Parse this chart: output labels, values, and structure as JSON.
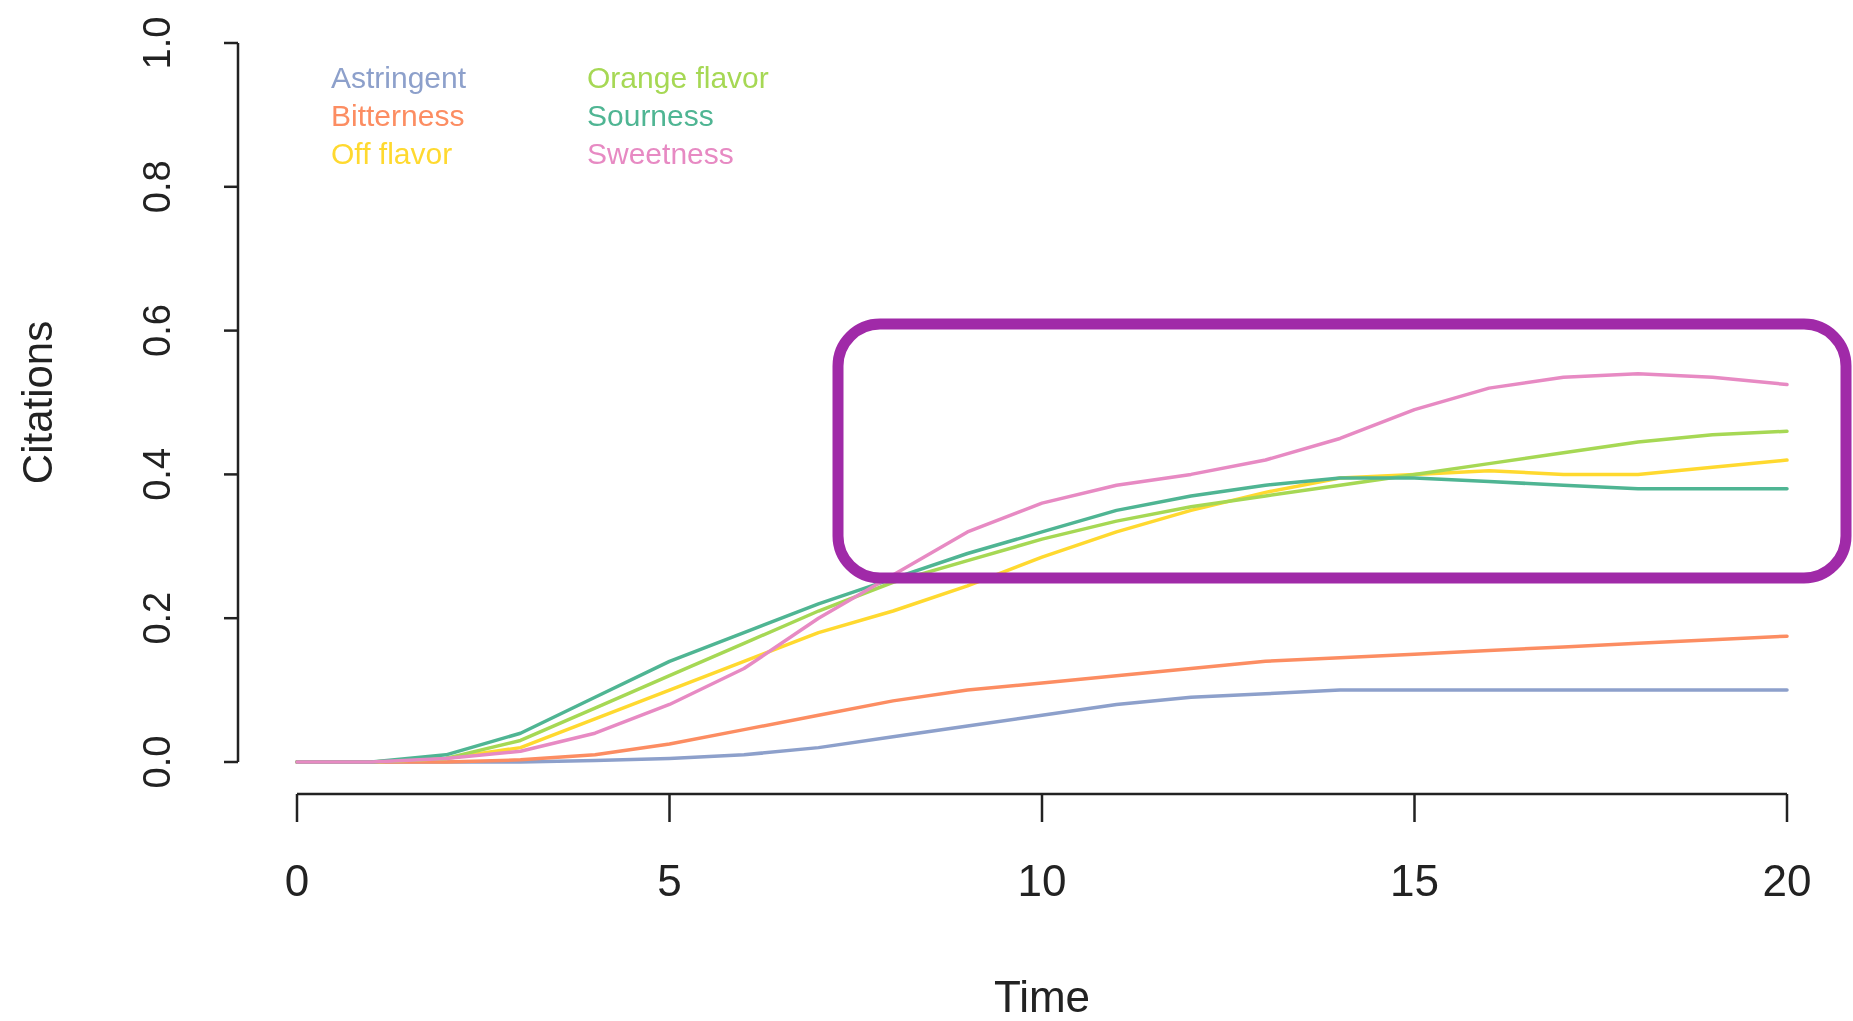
{
  "chart_data": {
    "type": "line",
    "xlabel": "Time",
    "ylabel": "Citations",
    "x": [
      0,
      1,
      2,
      3,
      4,
      5,
      6,
      7,
      8,
      9,
      10,
      11,
      12,
      13,
      14,
      15,
      16,
      17,
      18,
      19,
      20
    ],
    "xlim": [
      0,
      20
    ],
    "xticks": [
      0,
      5,
      10,
      15,
      20
    ],
    "ylim": [
      0,
      1
    ],
    "yticks": [
      {
        "value": 0,
        "label": "0.0"
      },
      {
        "value": 0.2,
        "label": "0.2"
      },
      {
        "value": 0.4,
        "label": "0.4"
      },
      {
        "value": 0.6,
        "label": "0.6"
      },
      {
        "value": 0.8,
        "label": "0.8"
      },
      {
        "value": 1,
        "label": "1.0"
      }
    ],
    "legend": "top left",
    "line_style": "solid",
    "marker": "none",
    "grid": false,
    "series": [
      {
        "name": "Astringent",
        "color": "#8da0cb",
        "values": [
          0,
          0,
          0,
          0,
          0.002,
          0.005,
          0.01,
          0.02,
          0.035,
          0.05,
          0.065,
          0.08,
          0.09,
          0.095,
          0.1,
          0.1,
          0.1,
          0.1,
          0.1,
          0.1,
          0.1
        ]
      },
      {
        "name": "Bitterness",
        "color": "#fc8d62",
        "values": [
          0,
          0,
          0,
          0.003,
          0.01,
          0.025,
          0.045,
          0.065,
          0.085,
          0.1,
          0.11,
          0.12,
          0.13,
          0.14,
          0.145,
          0.15,
          0.155,
          0.16,
          0.165,
          0.17,
          0.175
        ]
      },
      {
        "name": "Off flavor",
        "color": "#ffd92f",
        "values": [
          0,
          0,
          0.005,
          0.02,
          0.06,
          0.1,
          0.14,
          0.18,
          0.21,
          0.245,
          0.285,
          0.32,
          0.35,
          0.375,
          0.395,
          0.4,
          0.405,
          0.4,
          0.4,
          0.41,
          0.42
        ]
      },
      {
        "name": "Orange flavor",
        "color": "#a6d854",
        "values": [
          0,
          0,
          0.005,
          0.03,
          0.075,
          0.12,
          0.165,
          0.21,
          0.25,
          0.28,
          0.31,
          0.335,
          0.355,
          0.37,
          0.385,
          0.4,
          0.415,
          0.43,
          0.445,
          0.455,
          0.46
        ]
      },
      {
        "name": "Sourness",
        "color": "#4fb593",
        "values": [
          0,
          0,
          0.01,
          0.04,
          0.09,
          0.14,
          0.18,
          0.22,
          0.255,
          0.29,
          0.32,
          0.35,
          0.37,
          0.385,
          0.395,
          0.395,
          0.39,
          0.385,
          0.38,
          0.38,
          0.38
        ]
      },
      {
        "name": "Sweetness",
        "color": "#e78ac3",
        "values": [
          0,
          0,
          0.005,
          0.015,
          0.04,
          0.08,
          0.13,
          0.2,
          0.26,
          0.32,
          0.36,
          0.385,
          0.4,
          0.42,
          0.45,
          0.49,
          0.52,
          0.535,
          0.54,
          0.535,
          0.525
        ]
      }
    ]
  }
}
